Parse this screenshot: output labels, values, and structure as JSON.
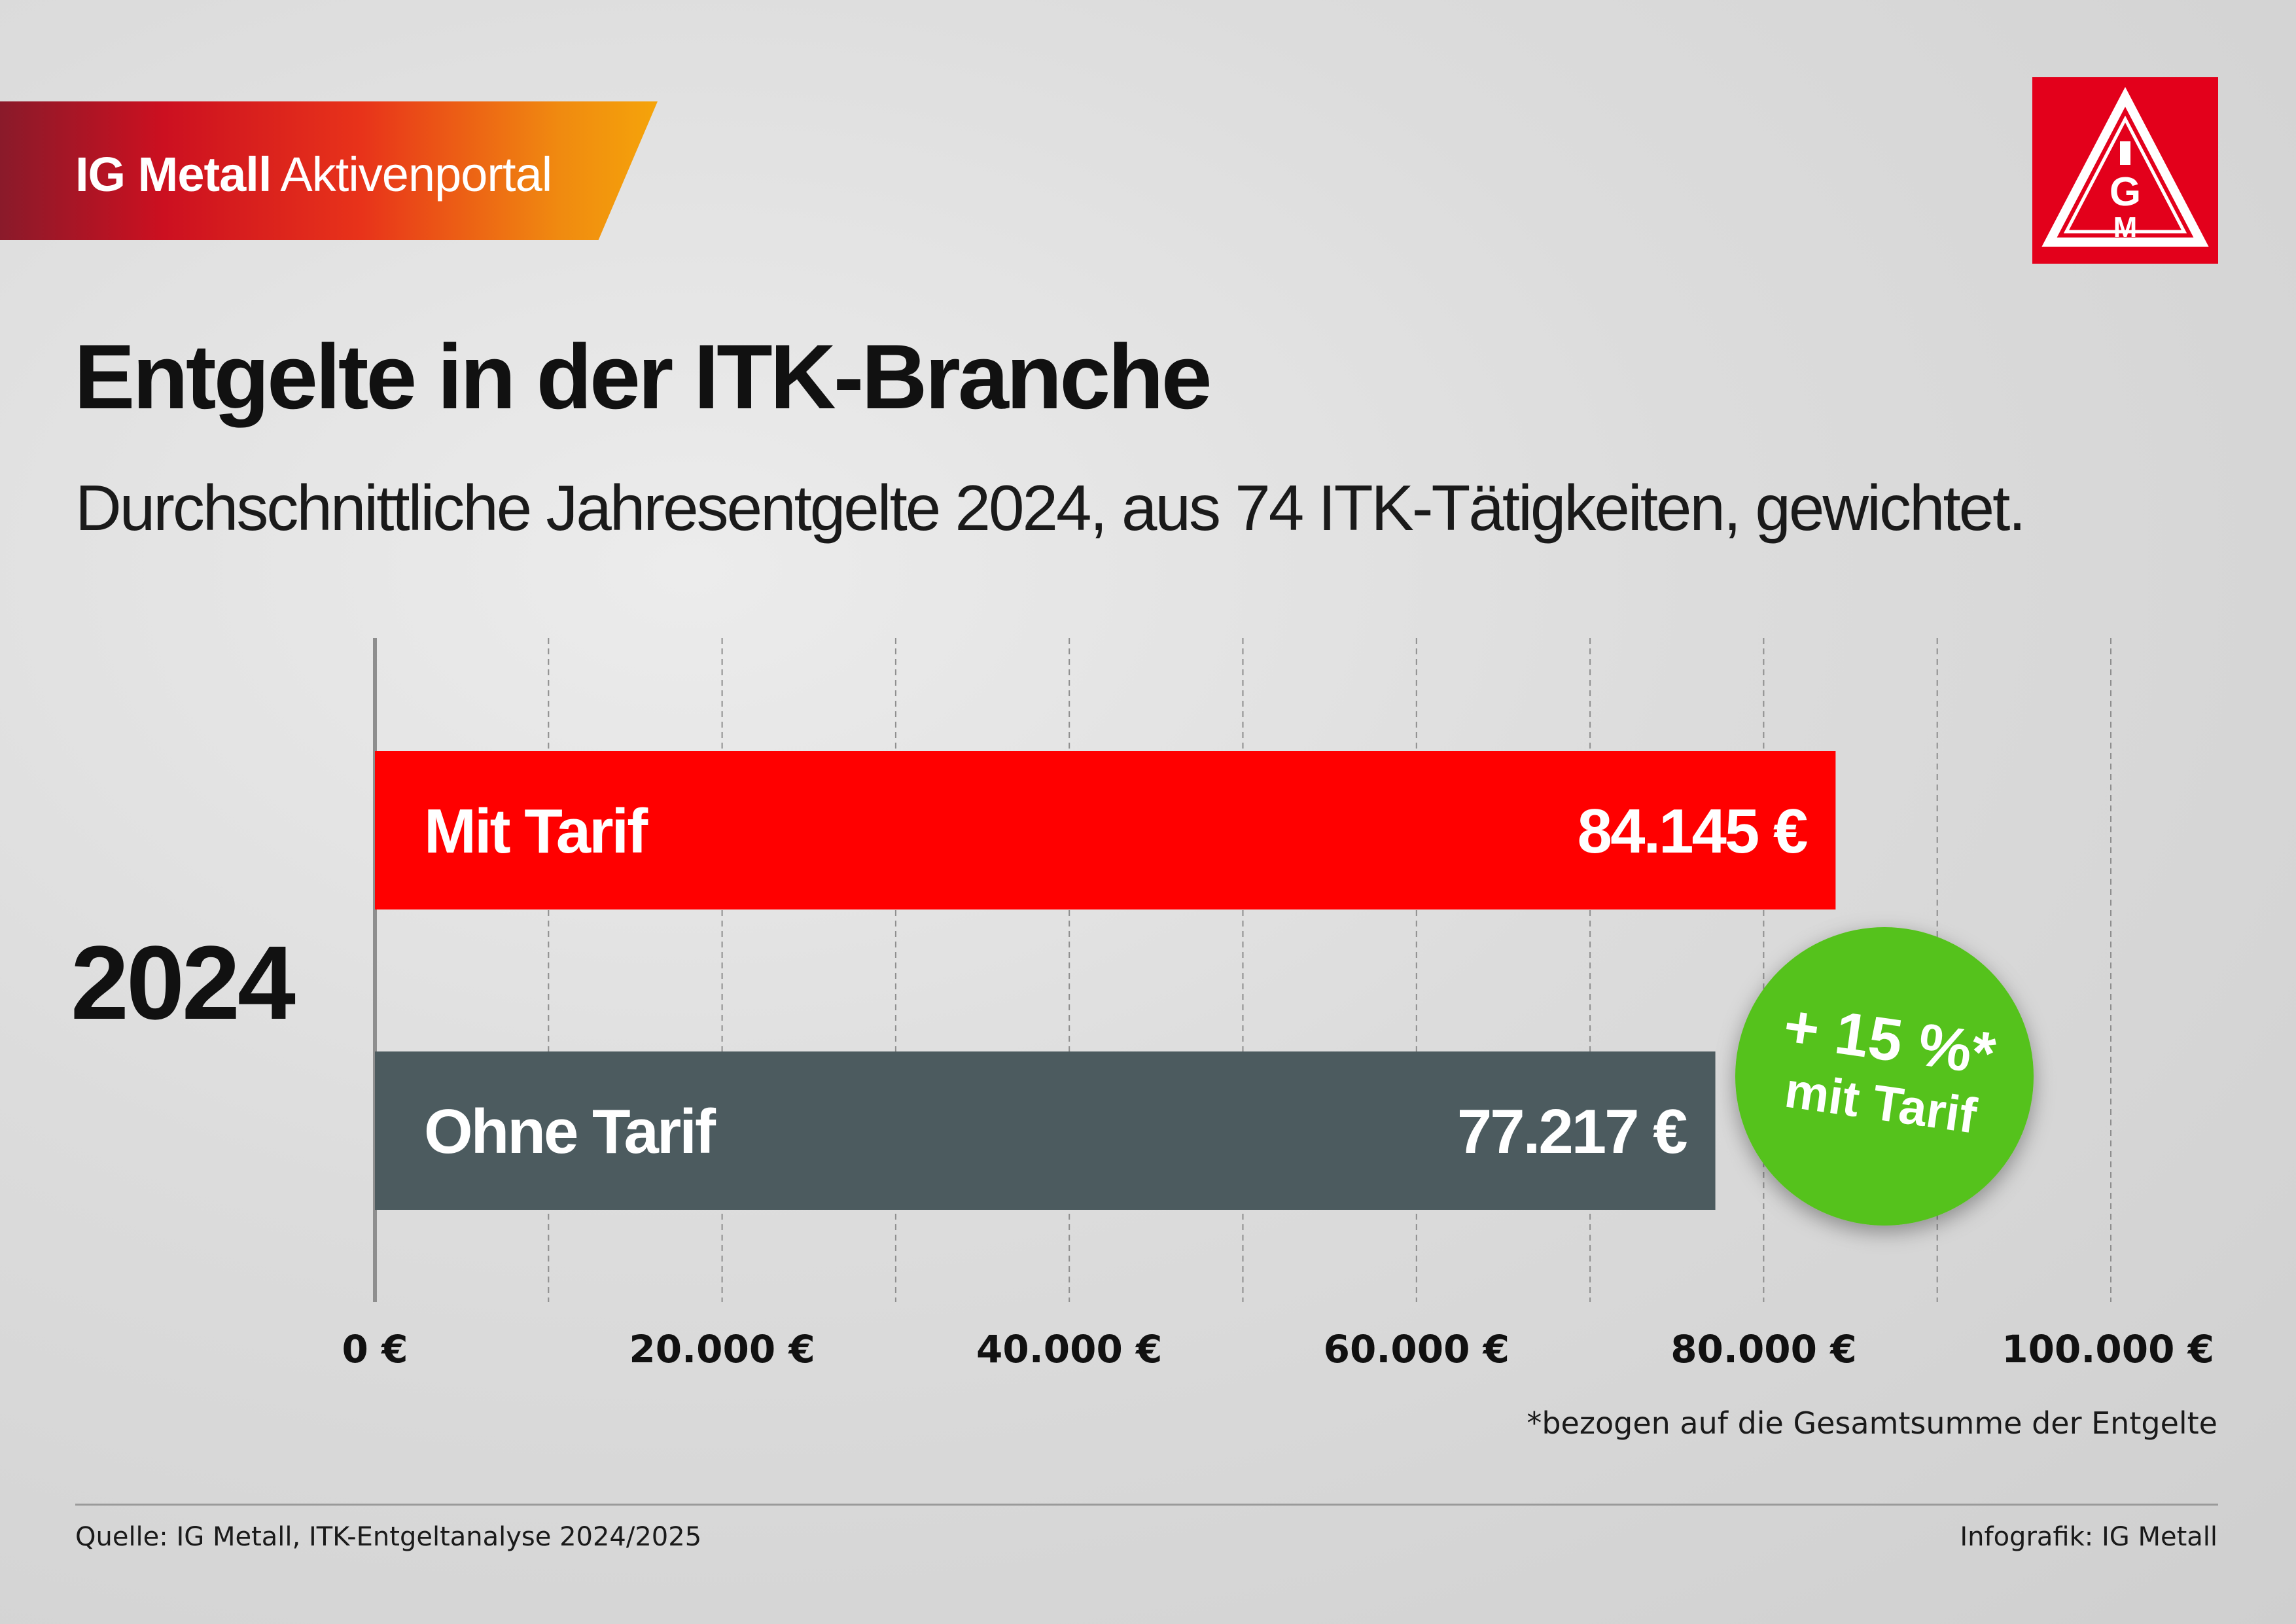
{
  "header": {
    "brand": "IG Metall",
    "portal": "Aktivenportal",
    "logo_text": "IGM"
  },
  "title": "Entgelte in der ITK-Branche",
  "subtitle": "Durchschnittliche Jahresentgelte 2024, aus 74 ITK-Tätigkeiten, gewichtet.",
  "colors": {
    "mit_tarif": "#ff0000",
    "ohne_tarif": "#4c5b5f",
    "badge": "#55c21a",
    "brand_red": "#e3001b"
  },
  "chart_data": {
    "type": "bar",
    "orientation": "horizontal",
    "category": "2024",
    "series": [
      {
        "name": "Mit Tarif",
        "value": 84145,
        "value_label": "84.145 €"
      },
      {
        "name": "Ohne Tarif",
        "value": 77217,
        "value_label": "77.217 €"
      }
    ],
    "xlim": [
      0,
      100000
    ],
    "xticks": [
      0,
      20000,
      40000,
      60000,
      80000,
      100000
    ],
    "tick_labels": [
      "0 €",
      "20.000 €",
      "40.000 €",
      "60.000 €",
      "80.000 €",
      "100.000 €"
    ],
    "grid": true,
    "annotation": {
      "line1": "+ 15 %*",
      "line2": "mit Tarif"
    }
  },
  "footnote": "*bezogen auf die Gesamtsumme der Entgelte",
  "source": "Quelle: IG Metall, ITK-Entgeltanalyse 2024/2025",
  "credit": "Infografik: IG Metall"
}
